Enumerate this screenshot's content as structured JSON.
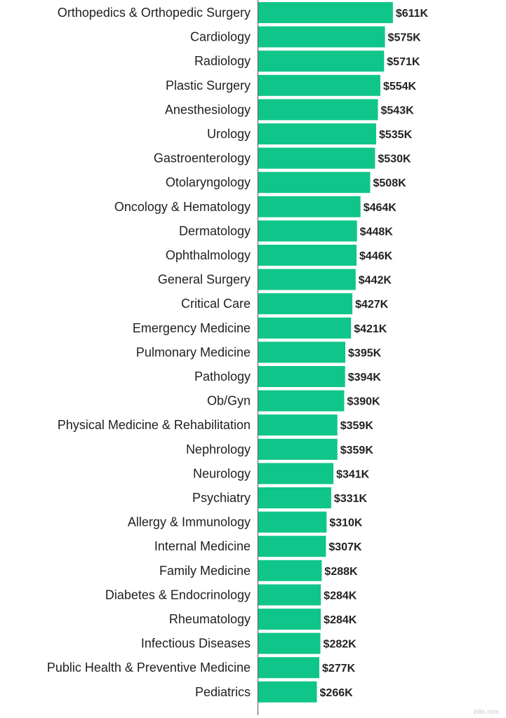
{
  "chart_data": {
    "type": "bar",
    "orientation": "horizontal",
    "categories": [
      "Orthopedics & Orthopedic Surgery",
      "Cardiology",
      "Radiology",
      "Plastic Surgery",
      "Anesthesiology",
      "Urology",
      "Gastroenterology",
      "Otolaryngology",
      "Oncology & Hematology",
      "Dermatology",
      "Ophthalmology",
      "General Surgery",
      "Critical Care",
      "Emergency Medicine",
      "Pulmonary Medicine",
      "Pathology",
      "Ob/Gyn",
      "Physical Medicine & Rehabilitation",
      "Nephrology",
      "Neurology",
      "Psychiatry",
      "Allergy & Immunology",
      "Internal Medicine",
      "Family Medicine",
      "Diabetes & Endocrinology",
      "Rheumatology",
      "Infectious Diseases",
      "Public Health & Preventive Medicine",
      "Pediatrics"
    ],
    "values": [
      611,
      575,
      571,
      554,
      543,
      535,
      530,
      508,
      464,
      448,
      446,
      442,
      427,
      421,
      395,
      394,
      390,
      359,
      359,
      341,
      331,
      310,
      307,
      288,
      284,
      284,
      282,
      277,
      266
    ],
    "value_labels": [
      "$611K",
      "$575K",
      "$571K",
      "$554K",
      "$543K",
      "$535K",
      "$530K",
      "$508K",
      "$464K",
      "$448K",
      "$446K",
      "$442K",
      "$427K",
      "$421K",
      "$395K",
      "$394K",
      "$390K",
      "$359K",
      "$359K",
      "$341K",
      "$331K",
      "$310K",
      "$307K",
      "$288K",
      "$284K",
      "$284K",
      "$282K",
      "$277K",
      "$266K"
    ],
    "bar_color": "#10c58a",
    "grid": false,
    "legend": "none"
  },
  "watermark": "zillic.com"
}
